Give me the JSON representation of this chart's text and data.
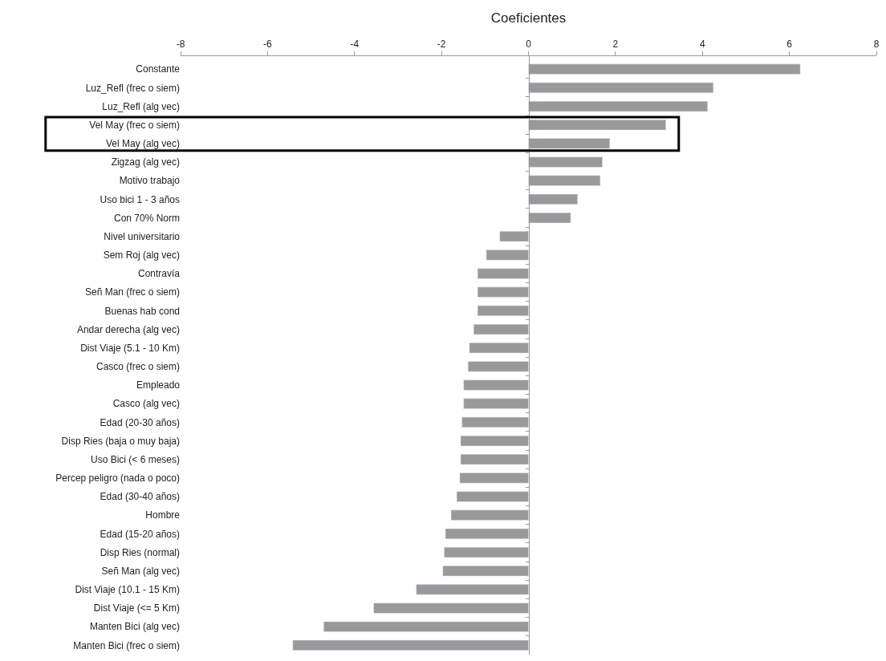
{
  "chart_data": {
    "type": "bar",
    "orientation": "horizontal",
    "xlabel": "Coeficientes",
    "categories": [
      "Constante",
      "Luz_Refl (frec o siem)",
      "Luz_Refl (alg vec)",
      "Vel May (frec o siem)",
      "Vel May (alg vec)",
      "Zigzag (alg vec)",
      "Motivo trabajo",
      "Uso bici 1 - 3 años",
      "Con 70% Norm",
      "Nivel universitario",
      "Sem Roj (alg vec)",
      "Contravía",
      "Señ Man (frec o siem)",
      "Buenas hab cond",
      "Andar derecha (alg vec)",
      "Dist Viaje (5.1 - 10 Km)",
      "Casco (frec o siem)",
      "Empleado",
      "Casco (alg vec)",
      "Edad (20-30 años)",
      "Disp Ries (baja o muy baja)",
      "Uso Bici (< 6 meses)",
      "Percep peligro (nada o poco)",
      "Edad (30-40 años)",
      "Hombre",
      "Edad (15-20 años)",
      "Disp Ries (normal)",
      "Señ Man (alg vec)",
      "Dist Viaje (10.1 - 15 Km)",
      "Dist Viaje (<= 5 Km)",
      "Manten Bici (alg vec)",
      "Manten Bici (frec o siem)"
    ],
    "values": [
      6.25,
      4.25,
      4.12,
      3.16,
      1.87,
      1.7,
      1.65,
      1.13,
      0.97,
      -0.66,
      -0.97,
      -1.17,
      -1.17,
      -1.17,
      -1.26,
      -1.36,
      -1.39,
      -1.49,
      -1.49,
      -1.53,
      -1.56,
      -1.56,
      -1.58,
      -1.65,
      -1.78,
      -1.91,
      -1.94,
      -1.97,
      -2.58,
      -3.56,
      -4.71,
      -5.42
    ],
    "color": "#999999",
    "xlim": [
      -8,
      8
    ],
    "xticks": [
      -8,
      -6,
      -4,
      -2,
      0,
      2,
      4,
      6,
      8
    ]
  }
}
